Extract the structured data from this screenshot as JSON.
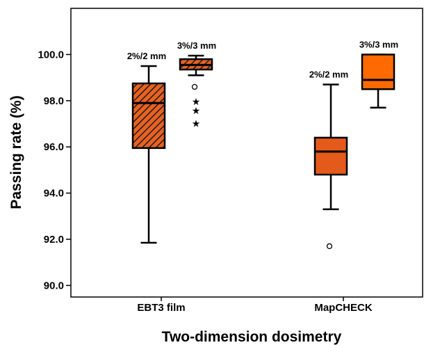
{
  "chart_data": {
    "type": "box",
    "xlabel": "Two-dimension dosimetry",
    "ylabel": "Passing rate (%)",
    "ylim": [
      89.5,
      102.0
    ],
    "yticks": [
      90.0,
      92.0,
      94.0,
      96.0,
      98.0,
      100.0
    ],
    "ytick_labels": [
      "90.0",
      "92.0",
      "94.0",
      "96.0",
      "98.0",
      "100.0"
    ],
    "grid": false,
    "categories": [
      "EBT3 film",
      "MapCHECK"
    ],
    "series": [
      {
        "name": "2%/2 mm",
        "color": "#e35a1a",
        "hatched": [
          true,
          false
        ],
        "boxes": [
          {
            "category": "EBT3 film",
            "whisker_low": 91.85,
            "q1": 95.95,
            "median": 97.9,
            "q3": 98.75,
            "whisker_high": 99.5,
            "outliers": [],
            "extremes": []
          },
          {
            "category": "MapCHECK",
            "whisker_low": 93.3,
            "q1": 94.8,
            "median": 95.8,
            "q3": 96.4,
            "whisker_high": 98.7,
            "outliers": [
              91.7
            ],
            "extremes": []
          }
        ]
      },
      {
        "name": "3%/3 mm",
        "color": "#ff6a00",
        "hatched": [
          true,
          false
        ],
        "boxes": [
          {
            "category": "EBT3 film",
            "whisker_low": 99.1,
            "q1": 99.35,
            "median": 99.55,
            "q3": 99.8,
            "whisker_high": 99.95,
            "outliers": [
              98.6
            ],
            "extremes": [
              98.0,
              97.6,
              97.05
            ]
          },
          {
            "category": "MapCHECK",
            "whisker_low": 97.7,
            "q1": 98.5,
            "median": 98.9,
            "q3": 100.0,
            "whisker_high": 100.0,
            "outliers": [],
            "extremes": []
          }
        ]
      }
    ],
    "annotations": [
      "2%/2 mm",
      "3%/3 mm",
      "2%/2 mm",
      "3%/3 mm"
    ]
  }
}
